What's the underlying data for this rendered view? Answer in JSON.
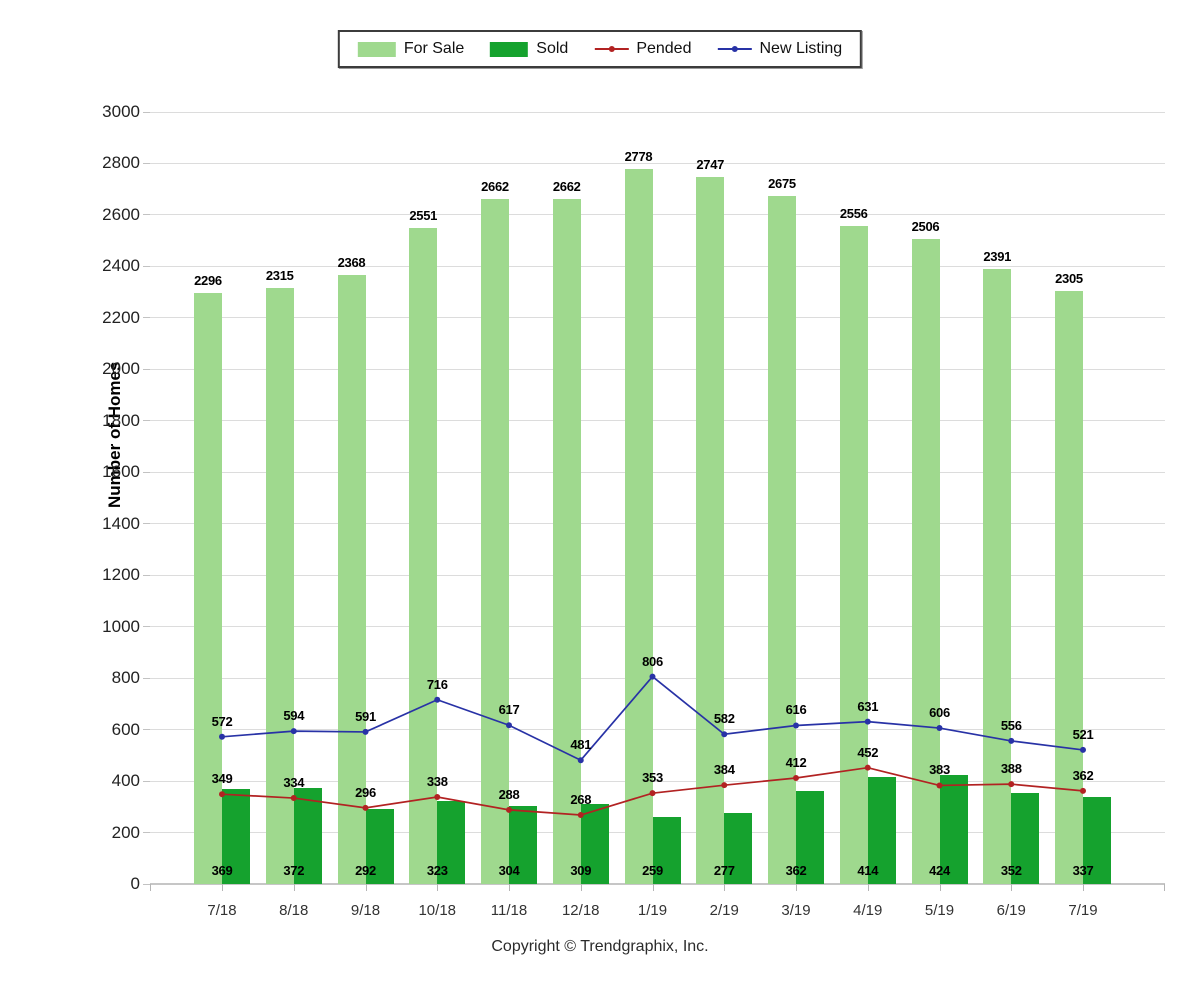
{
  "legend": {
    "items": [
      "For Sale",
      "Sold",
      "Pended",
      "New Listing"
    ]
  },
  "footer": "Copyright © Trendgraphix, Inc.",
  "chart_data": {
    "type": "combo",
    "title": "",
    "ylabel": "Number of Homes",
    "xlabel": "",
    "ylim": [
      0,
      3000
    ],
    "ytick_step": 200,
    "grid": true,
    "legend_position": "top-center",
    "categories": [
      "7/18",
      "8/18",
      "9/18",
      "10/18",
      "11/18",
      "12/18",
      "1/19",
      "2/19",
      "3/19",
      "4/19",
      "5/19",
      "6/19",
      "7/19"
    ],
    "series": [
      {
        "name": "For Sale",
        "type": "bar",
        "color": "#9fd98e",
        "values": [
          2296,
          2315,
          2368,
          2551,
          2662,
          2662,
          2778,
          2747,
          2675,
          2556,
          2506,
          2391,
          2305
        ]
      },
      {
        "name": "Sold",
        "type": "bar",
        "color": "#15a22e",
        "values": [
          369,
          372,
          292,
          323,
          304,
          309,
          259,
          277,
          362,
          414,
          424,
          352,
          337
        ]
      },
      {
        "name": "Pended",
        "type": "line",
        "color": "#b22222",
        "values": [
          349,
          334,
          296,
          338,
          288,
          268,
          353,
          384,
          412,
          452,
          383,
          388,
          362
        ]
      },
      {
        "name": "New Listing",
        "type": "line",
        "color": "#2832a6",
        "values": [
          572,
          594,
          591,
          716,
          617,
          481,
          806,
          582,
          616,
          631,
          606,
          556,
          521
        ]
      }
    ]
  }
}
